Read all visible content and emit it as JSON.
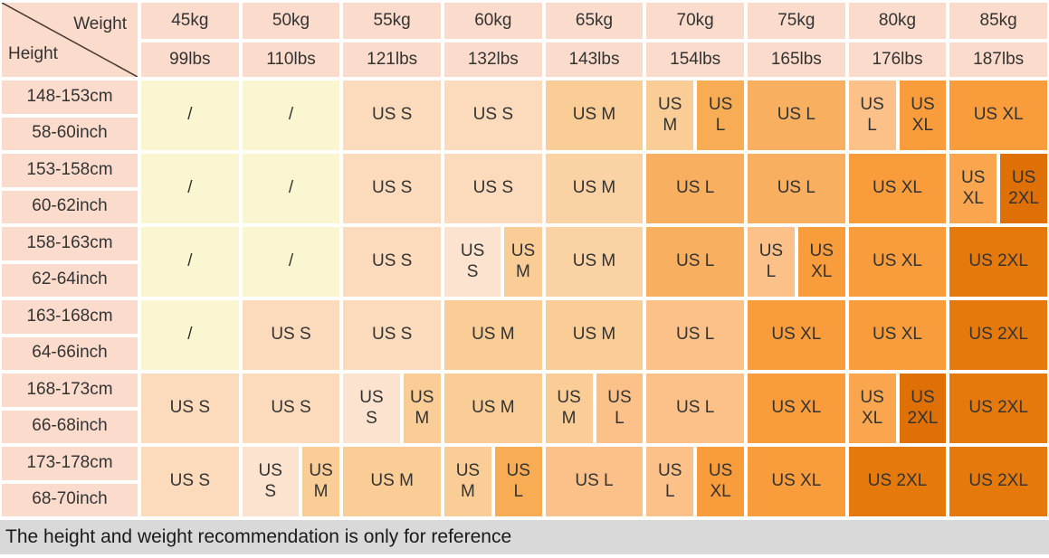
{
  "chart_data": {
    "type": "table",
    "corner": {
      "weight": "Weight",
      "height": "Height"
    },
    "note": "The height and weight recommendation is only for reference",
    "weight_headers": [
      {
        "kg": "45kg",
        "lbs": "99lbs"
      },
      {
        "kg": "50kg",
        "lbs": "110lbs"
      },
      {
        "kg": "55kg",
        "lbs": "121lbs"
      },
      {
        "kg": "60kg",
        "lbs": "132lbs"
      },
      {
        "kg": "65kg",
        "lbs": "143lbs"
      },
      {
        "kg": "70kg",
        "lbs": "154lbs"
      },
      {
        "kg": "75kg",
        "lbs": "165lbs"
      },
      {
        "kg": "80kg",
        "lbs": "176lbs"
      },
      {
        "kg": "85kg",
        "lbs": "187lbs"
      }
    ],
    "colors": {
      "header_bg": "#FBDCCC",
      "text": "#333333",
      "diagonal_line": "#4A3B33",
      "footer_bg": "#D9D9D9",
      "footer_text": "#1A1A1A",
      "sizes": {
        "none": "#FAF6D1",
        "s": "#FBDBBC",
        "s2": "#FCE3CF",
        "m": "#FACC96",
        "m2": "#FBD2A4",
        "l": "#F9AF60",
        "l2": "#FBC189",
        "l3": "#F8AC54",
        "xl": "#F89C3C",
        "xl2": "#F9A64F",
        "xxl": "#E5790C",
        "xxl2": "#DE7005"
      }
    },
    "rows": [
      {
        "cm": "148-153cm",
        "inch": "58-60inch",
        "cells": [
          {
            "parts": [
              {
                "label": "/",
                "size": "none"
              }
            ]
          },
          {
            "parts": [
              {
                "label": "/",
                "size": "none"
              }
            ]
          },
          {
            "parts": [
              {
                "label": "US S",
                "size": "s"
              }
            ]
          },
          {
            "parts": [
              {
                "label": "US S",
                "size": "s"
              }
            ]
          },
          {
            "parts": [
              {
                "label": "US M",
                "size": "m"
              }
            ]
          },
          {
            "parts": [
              {
                "label": "US M",
                "size": "m",
                "w": 1
              },
              {
                "label": "US L",
                "size": "l3",
                "w": 1
              }
            ]
          },
          {
            "parts": [
              {
                "label": "US L",
                "size": "l"
              }
            ]
          },
          {
            "parts": [
              {
                "label": "US L",
                "size": "l2",
                "w": 1
              },
              {
                "label": "US XL",
                "size": "xl",
                "w": 1
              }
            ]
          },
          {
            "parts": [
              {
                "label": "US XL",
                "size": "xl"
              }
            ]
          }
        ]
      },
      {
        "cm": "153-158cm",
        "inch": "60-62inch",
        "cells": [
          {
            "parts": [
              {
                "label": "/",
                "size": "none"
              }
            ]
          },
          {
            "parts": [
              {
                "label": "/",
                "size": "none"
              }
            ]
          },
          {
            "parts": [
              {
                "label": "US S",
                "size": "s"
              }
            ]
          },
          {
            "parts": [
              {
                "label": "US S",
                "size": "s"
              }
            ]
          },
          {
            "parts": [
              {
                "label": "US M",
                "size": "m2"
              }
            ]
          },
          {
            "parts": [
              {
                "label": "US L",
                "size": "l"
              }
            ]
          },
          {
            "parts": [
              {
                "label": "US L",
                "size": "l"
              }
            ]
          },
          {
            "parts": [
              {
                "label": "US XL",
                "size": "xl"
              }
            ]
          },
          {
            "parts": [
              {
                "label": "US XL",
                "size": "xl2",
                "w": 1
              },
              {
                "label": "US 2XL",
                "size": "xxl2",
                "w": 1
              }
            ]
          }
        ]
      },
      {
        "cm": "158-163cm",
        "inch": "62-64inch",
        "cells": [
          {
            "parts": [
              {
                "label": "/",
                "size": "none"
              }
            ]
          },
          {
            "parts": [
              {
                "label": "/",
                "size": "none"
              }
            ]
          },
          {
            "parts": [
              {
                "label": "US S",
                "size": "s"
              }
            ]
          },
          {
            "parts": [
              {
                "label": "US S",
                "size": "s2",
                "w": 3
              },
              {
                "label": "US M",
                "size": "m",
                "w": 2
              }
            ]
          },
          {
            "parts": [
              {
                "label": "US M",
                "size": "m2"
              }
            ]
          },
          {
            "parts": [
              {
                "label": "US L",
                "size": "l"
              }
            ]
          },
          {
            "parts": [
              {
                "label": "US L",
                "size": "l2",
                "w": 1
              },
              {
                "label": "US XL",
                "size": "xl",
                "w": 1
              }
            ]
          },
          {
            "parts": [
              {
                "label": "US XL",
                "size": "xl"
              }
            ]
          },
          {
            "parts": [
              {
                "label": "US 2XL",
                "size": "xxl"
              }
            ]
          }
        ]
      },
      {
        "cm": "163-168cm",
        "inch": "64-66inch",
        "cells": [
          {
            "parts": [
              {
                "label": "/",
                "size": "none"
              }
            ]
          },
          {
            "parts": [
              {
                "label": "US S",
                "size": "s"
              }
            ]
          },
          {
            "parts": [
              {
                "label": "US S",
                "size": "s"
              }
            ]
          },
          {
            "parts": [
              {
                "label": "US M",
                "size": "m"
              }
            ]
          },
          {
            "parts": [
              {
                "label": "US M",
                "size": "m"
              }
            ]
          },
          {
            "parts": [
              {
                "label": "US L",
                "size": "l2"
              }
            ]
          },
          {
            "parts": [
              {
                "label": "US XL",
                "size": "xl"
              }
            ]
          },
          {
            "parts": [
              {
                "label": "US XL",
                "size": "xl"
              }
            ]
          },
          {
            "parts": [
              {
                "label": "US 2XL",
                "size": "xxl"
              }
            ]
          }
        ]
      },
      {
        "cm": "168-173cm",
        "inch": "66-68inch",
        "cells": [
          {
            "parts": [
              {
                "label": "US S",
                "size": "s"
              }
            ]
          },
          {
            "parts": [
              {
                "label": "US S",
                "size": "s"
              }
            ]
          },
          {
            "parts": [
              {
                "label": "US S",
                "size": "s2",
                "w": 3
              },
              {
                "label": "US M",
                "size": "m",
                "w": 2
              }
            ]
          },
          {
            "parts": [
              {
                "label": "US M",
                "size": "m"
              }
            ]
          },
          {
            "parts": [
              {
                "label": "US M",
                "size": "m",
                "w": 1
              },
              {
                "label": "US L",
                "size": "l2",
                "w": 1
              }
            ]
          },
          {
            "parts": [
              {
                "label": "US L",
                "size": "l2"
              }
            ]
          },
          {
            "parts": [
              {
                "label": "US XL",
                "size": "xl"
              }
            ]
          },
          {
            "parts": [
              {
                "label": "US XL",
                "size": "xl2",
                "w": 1
              },
              {
                "label": "US 2XL",
                "size": "xxl2",
                "w": 1
              }
            ]
          },
          {
            "parts": [
              {
                "label": "US 2XL",
                "size": "xxl"
              }
            ]
          }
        ]
      },
      {
        "cm": "173-178cm",
        "inch": "68-70inch",
        "cells": [
          {
            "parts": [
              {
                "label": "US S",
                "size": "s"
              }
            ]
          },
          {
            "parts": [
              {
                "label": "US S",
                "size": "s2",
                "w": 3
              },
              {
                "label": "US M",
                "size": "m",
                "w": 2
              }
            ]
          },
          {
            "parts": [
              {
                "label": "US M",
                "size": "m"
              }
            ]
          },
          {
            "parts": [
              {
                "label": "US M",
                "size": "m",
                "w": 1
              },
              {
                "label": "US L",
                "size": "l3",
                "w": 1
              }
            ]
          },
          {
            "parts": [
              {
                "label": "US L",
                "size": "l2"
              }
            ]
          },
          {
            "parts": [
              {
                "label": "US L",
                "size": "l2",
                "w": 1
              },
              {
                "label": "US XL",
                "size": "xl",
                "w": 1
              }
            ]
          },
          {
            "parts": [
              {
                "label": "US XL",
                "size": "xl"
              }
            ]
          },
          {
            "parts": [
              {
                "label": "US 2XL",
                "size": "xxl"
              }
            ]
          },
          {
            "parts": [
              {
                "label": "US 2XL",
                "size": "xxl"
              }
            ]
          }
        ]
      }
    ]
  }
}
